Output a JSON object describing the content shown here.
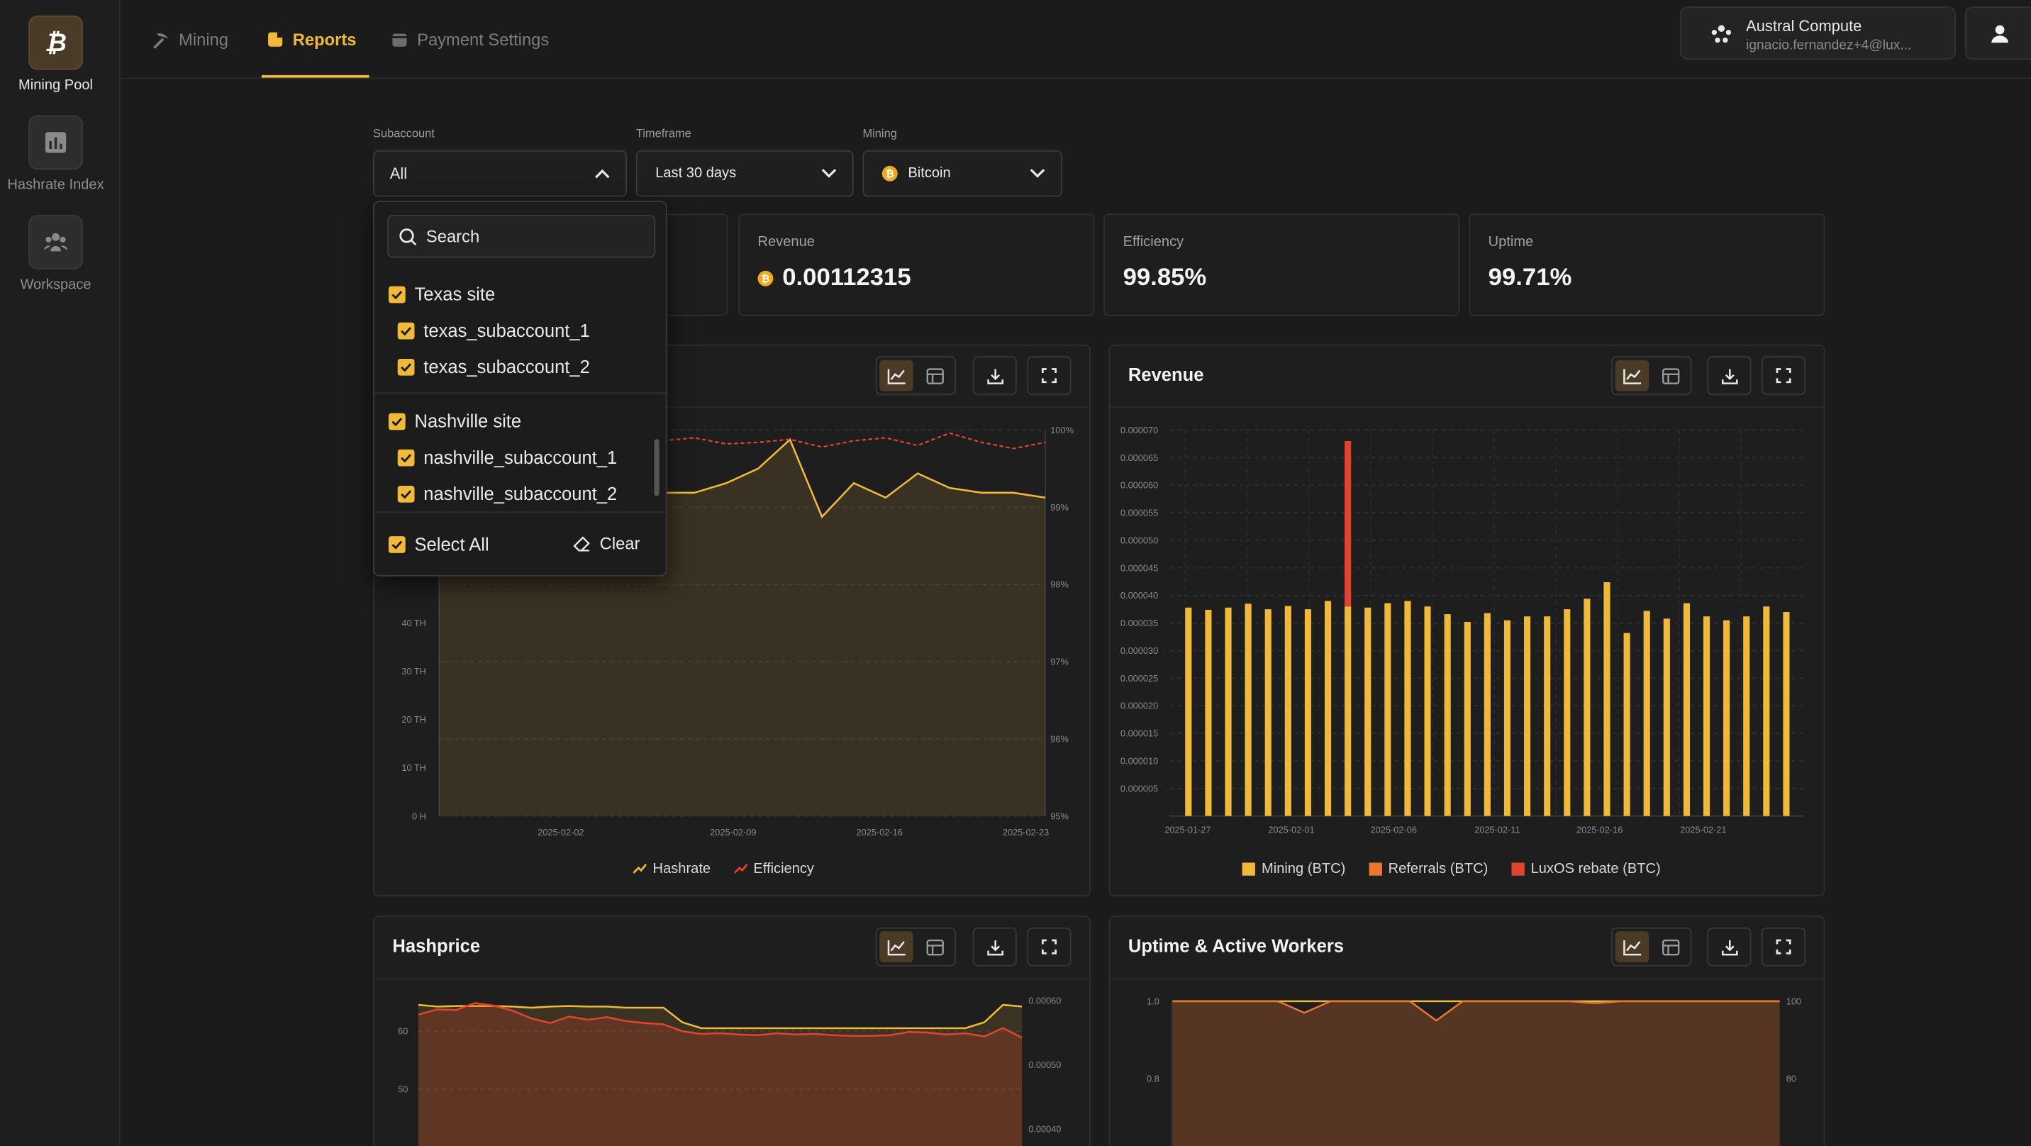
{
  "rail": {
    "items": [
      {
        "label": "Mining Pool",
        "icon": "bitcoin-icon"
      },
      {
        "label": "Hashrate Index",
        "icon": "bar-chart-icon"
      },
      {
        "label": "Workspace",
        "icon": "team-icon"
      }
    ]
  },
  "tabs": [
    {
      "label": "Mining",
      "icon": "pickaxe-icon"
    },
    {
      "label": "Reports",
      "icon": "report-icon"
    },
    {
      "label": "Payment Settings",
      "icon": "wallet-icon"
    }
  ],
  "org": {
    "name": "Austral Compute",
    "email": "ignacio.fernandez+4@lux..."
  },
  "filters": {
    "subaccount": {
      "label": "Subaccount",
      "value": "All"
    },
    "timeframe": {
      "label": "Timeframe",
      "value": "Last 30 days"
    },
    "mining": {
      "label": "Mining",
      "value": "Bitcoin"
    }
  },
  "stats": {
    "revenue": {
      "label": "Revenue",
      "value": "0.00112315"
    },
    "efficiency": {
      "label": "Efficiency",
      "value": "99.85%"
    },
    "uptime": {
      "label": "Uptime",
      "value": "99.71%"
    }
  },
  "dropdown": {
    "search_placeholder": "Search",
    "groups": [
      {
        "label": "Texas site",
        "children": [
          "texas_subaccount_1",
          "texas_subaccount_2"
        ]
      },
      {
        "label": "Nashville site",
        "children": [
          "nashville_subaccount_1",
          "nashville_subaccount_2"
        ]
      }
    ],
    "select_all": "Select All",
    "clear": "Clear"
  },
  "colors": {
    "accent": "#f0b93a",
    "red": "#e0442f",
    "orange": "#e8782d",
    "bg": "#1b1b1b"
  },
  "chart_data": [
    {
      "type": "area",
      "title": "",
      "x_ticks": [
        "2025-02-02",
        "2025-02-09",
        "2025-02-16",
        "2025-02-23"
      ],
      "y_left_ticks": [
        "0 H",
        "10 TH",
        "20 TH",
        "30 TH",
        "40 TH"
      ],
      "y_right_ticks": [
        "95%",
        "96%",
        "97%",
        "98%",
        "99%",
        "100%"
      ],
      "ylim_left_th": [
        0,
        80
      ],
      "ylim_right_pct": [
        95,
        100
      ],
      "series": [
        {
          "name": "Hashrate",
          "unit": "TH",
          "color": "#f0b93a",
          "values": [
            66,
            67,
            66,
            64,
            61,
            68,
            66,
            67,
            67,
            69,
            72,
            78,
            62,
            69,
            66,
            71,
            68,
            67,
            67,
            66
          ]
        },
        {
          "name": "Efficiency",
          "unit": "%",
          "color": "#e0442f",
          "values": [
            99.8,
            99.82,
            99.78,
            99.9,
            99.95,
            99.72,
            99.88,
            99.86,
            99.9,
            99.82,
            99.84,
            99.88,
            99.78,
            99.86,
            99.9,
            99.8,
            99.96,
            99.84,
            99.76,
            99.84
          ]
        }
      ],
      "grid": true
    },
    {
      "type": "bar",
      "title": "Revenue",
      "x_ticks": [
        "2025-01-27",
        "2025-02-01",
        "2025-02-06",
        "2025-02-11",
        "2025-02-16",
        "2025-02-21"
      ],
      "y_ticks": [
        "0.000005",
        "0.000010",
        "0.000015",
        "0.000020",
        "0.000025",
        "0.000030",
        "0.000035",
        "0.000040",
        "0.000045",
        "0.000050",
        "0.000055",
        "0.000060",
        "0.000065",
        "0.000070"
      ],
      "ylim": [
        0,
        7e-05
      ],
      "series": [
        {
          "name": "Mining (BTC)",
          "color": "#f0b93a",
          "values": [
            3.78e-05,
            3.74e-05,
            3.78e-05,
            3.85e-05,
            3.75e-05,
            3.81e-05,
            3.75e-05,
            3.9e-05,
            3.8e-05,
            3.78e-05,
            3.86e-05,
            3.9e-05,
            3.8e-05,
            3.66e-05,
            3.52e-05,
            3.68e-05,
            3.55e-05,
            3.62e-05,
            3.62e-05,
            3.75e-05,
            3.94e-05,
            4.24e-05,
            3.32e-05,
            3.72e-05,
            3.58e-05,
            3.86e-05,
            3.62e-05,
            3.55e-05,
            3.62e-05,
            3.8e-05,
            3.7e-05
          ]
        },
        {
          "name": "Referrals (BTC)",
          "color": "#e8782d",
          "values": [
            0,
            0,
            0,
            0,
            0,
            0,
            0,
            0,
            0,
            0,
            0,
            0,
            0,
            0,
            0,
            0,
            0,
            0,
            0,
            0,
            0,
            0,
            0,
            0,
            0,
            0,
            0,
            0,
            0,
            0,
            0
          ]
        },
        {
          "name": "LuxOS rebate (BTC)",
          "color": "#e0442f",
          "values": [
            0,
            0,
            0,
            0,
            0,
            0,
            0,
            0,
            3e-05,
            0,
            0,
            0,
            0,
            0,
            0,
            0,
            0,
            0,
            0,
            0,
            0,
            0,
            0,
            0,
            0,
            0,
            0,
            0,
            0,
            0,
            0
          ]
        }
      ],
      "grid": true,
      "legend": "bottom"
    },
    {
      "type": "area",
      "title": "Hashprice",
      "y_left_ticks": [
        "50",
        "60"
      ],
      "y_right_ticks": [
        "0.00040",
        "0.00050",
        "0.00060"
      ],
      "series": [
        {
          "name": "",
          "color": "#f0b93a",
          "values": [
            64.5,
            64.2,
            64.3,
            64.3,
            64.3,
            64.2,
            64,
            64.2,
            64.3,
            64.2,
            64.2,
            64,
            64,
            64,
            61.5,
            60.5,
            60.5,
            60.5,
            60.5,
            60.5,
            60.5,
            60.5,
            60.5,
            60.5,
            60.5,
            60.5,
            60.5,
            60.5,
            60.5,
            60.5,
            61.5,
            64.5,
            64.2
          ]
        },
        {
          "name": "",
          "color": "#e0442f",
          "values": [
            0.000578,
            0.000586,
            0.000585,
            0.000596,
            0.000592,
            0.000584,
            0.000572,
            0.000565,
            0.000575,
            0.00057,
            0.000574,
            0.000568,
            0.000565,
            0.000563,
            0.000552,
            0.000548,
            0.000549,
            0.000547,
            0.000546,
            0.000549,
            0.000547,
            0.000548,
            0.000546,
            0.000545,
            0.000545,
            0.000546,
            0.000551,
            0.00055,
            0.000547,
            0.000549,
            0.000544,
            0.000557,
            0.000542
          ]
        }
      ]
    },
    {
      "type": "area",
      "title": "Uptime & Active Workers",
      "y_left_ticks": [
        "0.8",
        "1.0"
      ],
      "y_right_ticks": [
        "80",
        "100"
      ],
      "series": [
        {
          "name": "",
          "color": "#f0b93a",
          "values": [
            1.0,
            1.0,
            1.0,
            1.0,
            1.0,
            1.0,
            1.0,
            1.0,
            1.0,
            1.0,
            1.0,
            1.0,
            1.0,
            1.0,
            1.0,
            1.0,
            1.0,
            1.0,
            1.0,
            1.0,
            1.0,
            1.0,
            1.0,
            1.0
          ]
        },
        {
          "name": "",
          "color": "#e8782d",
          "values": [
            100,
            100,
            100,
            100,
            100,
            97,
            100,
            100,
            100,
            100,
            95,
            100,
            100,
            100,
            100,
            100,
            99.5,
            100,
            100,
            100,
            100,
            100,
            100,
            100
          ]
        }
      ]
    }
  ]
}
